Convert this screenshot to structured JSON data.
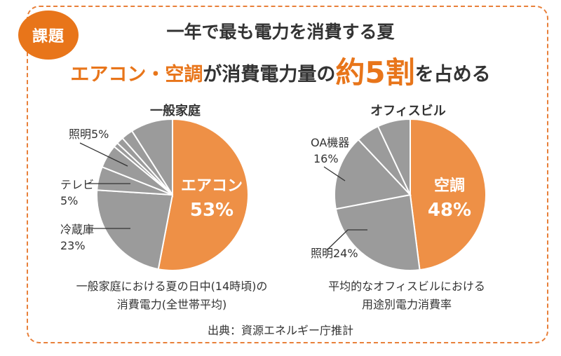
{
  "badge": "課題",
  "title_line1": "一年で最も電力を消費する夏",
  "title_line2": {
    "part1": "エアコン・空調",
    "part2": "が消費電力量の",
    "part3": "約5割",
    "part4": "を占める"
  },
  "source": "出典：資源エネルギー庁推計",
  "colors": {
    "accent": "#ee9046",
    "gray": "#9b9b9b",
    "text": "#333333",
    "frame": "#e8803a"
  },
  "chart_data": [
    {
      "type": "pie",
      "title": "一般家庭",
      "caption_lines": [
        "一般家庭における夏の日中(14時頃)の",
        "消費電力(全世帯平均)"
      ],
      "slices": [
        {
          "label": "エアコン",
          "value": 53,
          "value_text": "53%"
        },
        {
          "label": "冷蔵庫",
          "value": 23,
          "value_text": "23%"
        },
        {
          "label": "テレビ",
          "value": 5,
          "value_text": "5%"
        },
        {
          "label": "照明",
          "value": 5,
          "value_text": "照明5%"
        },
        {
          "label": "",
          "value": 1
        },
        {
          "label": "",
          "value": 1.5
        },
        {
          "label": "",
          "value": 2.5
        },
        {
          "label": "",
          "value": 9
        }
      ]
    },
    {
      "type": "pie",
      "title": "オフィスビル",
      "caption_lines": [
        "平均的なオフィスビルにおける",
        "用途別電力消費率"
      ],
      "slices": [
        {
          "label": "空調",
          "value": 48,
          "value_text": "48%"
        },
        {
          "label": "照明",
          "value": 24,
          "value_text": "照明24%"
        },
        {
          "label": "OA機器",
          "value": 16,
          "value_text": "16%"
        },
        {
          "label": "",
          "value": 5
        },
        {
          "label": "",
          "value": 7
        }
      ]
    }
  ]
}
